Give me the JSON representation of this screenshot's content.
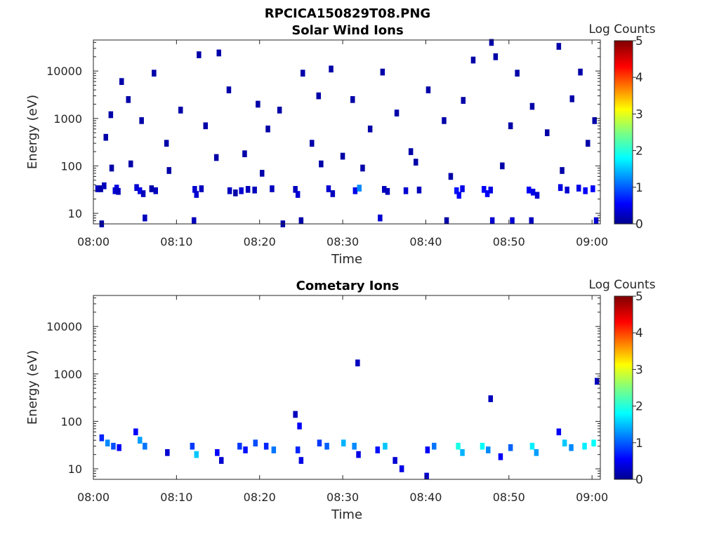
{
  "figure": {
    "title": "RPCICA150829T08.PNG"
  },
  "colorbar": {
    "label": "Log Counts",
    "range": [
      0,
      5
    ],
    "ticks": [
      "0",
      "1",
      "2",
      "3",
      "4",
      "5"
    ],
    "colormap": "jet"
  },
  "chart_data": [
    {
      "type": "heatmap",
      "title": "Solar Wind Ions",
      "xlabel": "Time",
      "ylabel": "Energy (eV)",
      "yscale": "log",
      "xlim": [
        "08:00",
        "09:01"
      ],
      "ylim": [
        6,
        45000
      ],
      "xticks": [
        "08:00",
        "08:10",
        "08:20",
        "08:30",
        "08:40",
        "08:50",
        "09:00"
      ],
      "yticks": [
        "10",
        "100",
        "1000",
        "10000"
      ],
      "xticks_min": [
        0,
        10,
        20,
        30,
        40,
        50,
        60
      ],
      "yticks_val": [
        10,
        100,
        1000,
        10000
      ],
      "cells": [
        [
          0.5,
          33,
          0.3
        ],
        [
          0.9,
          33,
          0.2
        ],
        [
          1.3,
          38,
          0.3
        ],
        [
          2.8,
          34,
          0.5
        ],
        [
          2.6,
          30,
          0.4
        ],
        [
          3.0,
          29,
          0.3
        ],
        [
          5.2,
          35,
          0.4
        ],
        [
          5.6,
          30,
          0.5
        ],
        [
          6.0,
          26,
          0.3
        ],
        [
          7.0,
          33,
          0.2
        ],
        [
          7.5,
          30,
          0.3
        ],
        [
          12.2,
          32,
          0.4
        ],
        [
          12.4,
          25,
          0.4
        ],
        [
          13.0,
          33,
          0.3
        ],
        [
          16.4,
          30,
          0.3
        ],
        [
          17.1,
          27,
          0.2
        ],
        [
          17.8,
          30,
          0.4
        ],
        [
          18.6,
          32,
          0.3
        ],
        [
          19.4,
          31,
          0.3
        ],
        [
          21.5,
          33,
          0.3
        ],
        [
          24.3,
          32,
          0.3
        ],
        [
          24.6,
          25,
          0.4
        ],
        [
          28.3,
          33,
          0.4
        ],
        [
          28.8,
          26,
          0.3
        ],
        [
          31.5,
          30,
          0.5
        ],
        [
          32.0,
          34,
          1.3
        ],
        [
          35.0,
          32,
          0.3
        ],
        [
          35.4,
          29,
          0.3
        ],
        [
          37.6,
          30,
          0.4
        ],
        [
          39.2,
          31,
          0.3
        ],
        [
          43.7,
          30,
          0.7
        ],
        [
          44.0,
          24,
          0.6
        ],
        [
          44.4,
          33,
          0.5
        ],
        [
          47.0,
          32,
          0.6
        ],
        [
          47.4,
          26,
          0.6
        ],
        [
          47.8,
          31,
          0.5
        ],
        [
          52.4,
          31,
          0.6
        ],
        [
          52.9,
          28,
          0.5
        ],
        [
          53.4,
          24,
          0.4
        ],
        [
          56.2,
          35,
          0.5
        ],
        [
          57.0,
          31,
          0.4
        ],
        [
          58.4,
          34,
          0.5
        ],
        [
          59.2,
          30,
          0.6
        ],
        [
          60.1,
          33,
          0.6
        ],
        [
          1.5,
          400,
          0.2
        ],
        [
          2.1,
          1200,
          0.2
        ],
        [
          3.4,
          6000,
          0.2
        ],
        [
          4.2,
          2500,
          0.2
        ],
        [
          5.8,
          900,
          0.2
        ],
        [
          7.3,
          9000,
          0.2
        ],
        [
          8.8,
          300,
          0.2
        ],
        [
          10.5,
          1500,
          0.2
        ],
        [
          12.7,
          22000,
          0.2
        ],
        [
          13.5,
          700,
          0.2
        ],
        [
          15.1,
          24000,
          0.2
        ],
        [
          16.3,
          4000,
          0.2
        ],
        [
          18.2,
          180,
          0.2
        ],
        [
          19.8,
          2000,
          0.2
        ],
        [
          21.0,
          600,
          0.2
        ],
        [
          22.4,
          1500,
          0.2
        ],
        [
          25.2,
          9000,
          0.2
        ],
        [
          26.3,
          300,
          0.2
        ],
        [
          27.1,
          3000,
          0.2
        ],
        [
          28.6,
          11000,
          0.2
        ],
        [
          30.0,
          160,
          0.2
        ],
        [
          31.2,
          2500,
          0.2
        ],
        [
          33.3,
          600,
          0.2
        ],
        [
          34.8,
          9500,
          0.2
        ],
        [
          36.5,
          1300,
          0.2
        ],
        [
          38.2,
          200,
          0.2
        ],
        [
          40.3,
          4000,
          0.2
        ],
        [
          42.2,
          900,
          0.2
        ],
        [
          44.5,
          2400,
          0.2
        ],
        [
          45.7,
          17000,
          0.2
        ],
        [
          47.9,
          40000,
          0.2
        ],
        [
          48.4,
          20000,
          0.2
        ],
        [
          50.2,
          700,
          0.2
        ],
        [
          51.0,
          9000,
          0.2
        ],
        [
          52.8,
          1800,
          0.2
        ],
        [
          54.6,
          500,
          0.2
        ],
        [
          56.0,
          33000,
          0.2
        ],
        [
          57.6,
          2600,
          0.2
        ],
        [
          58.6,
          9500,
          0.2
        ],
        [
          59.5,
          300,
          0.2
        ],
        [
          60.3,
          900,
          0.2
        ],
        [
          2.2,
          90,
          0.2
        ],
        [
          4.5,
          110,
          0.2
        ],
        [
          9.1,
          80,
          0.2
        ],
        [
          14.8,
          150,
          0.2
        ],
        [
          20.3,
          70,
          0.2
        ],
        [
          27.4,
          110,
          0.2
        ],
        [
          32.4,
          90,
          0.2
        ],
        [
          38.8,
          120,
          0.2
        ],
        [
          43.0,
          60,
          0.2
        ],
        [
          49.2,
          100,
          0.2
        ],
        [
          56.4,
          80,
          0.2
        ],
        [
          1.0,
          6,
          0.2
        ],
        [
          6.2,
          8,
          0.3
        ],
        [
          12.1,
          7,
          0.3
        ],
        [
          22.8,
          6,
          0.2
        ],
        [
          25.0,
          7,
          0.2
        ],
        [
          34.5,
          8,
          0.4
        ],
        [
          42.5,
          7,
          0.2
        ],
        [
          48.0,
          7,
          0.4
        ],
        [
          50.4,
          7,
          0.4
        ],
        [
          52.7,
          7,
          0.3
        ],
        [
          60.5,
          7,
          0.4
        ]
      ]
    },
    {
      "type": "heatmap",
      "title": "Cometary Ions",
      "xlabel": "Time",
      "ylabel": "Energy (eV)",
      "yscale": "log",
      "xlim": [
        "08:00",
        "09:01"
      ],
      "ylim": [
        6,
        45000
      ],
      "xticks": [
        "08:00",
        "08:10",
        "08:20",
        "08:30",
        "08:40",
        "08:50",
        "09:00"
      ],
      "yticks": [
        "10",
        "100",
        "1000",
        "10000"
      ],
      "xticks_min": [
        0,
        10,
        20,
        30,
        40,
        50,
        60
      ],
      "yticks_val": [
        10,
        100,
        1000,
        10000
      ],
      "cells": [
        [
          1.0,
          45,
          0.8
        ],
        [
          1.7,
          35,
          1.3
        ],
        [
          2.4,
          30,
          1.0
        ],
        [
          3.1,
          28,
          0.6
        ],
        [
          5.1,
          60,
          0.6
        ],
        [
          5.6,
          40,
          1.4
        ],
        [
          6.2,
          30,
          1.2
        ],
        [
          8.9,
          22,
          0.4
        ],
        [
          11.9,
          30,
          0.9
        ],
        [
          12.4,
          20,
          1.6
        ],
        [
          14.9,
          22,
          0.6
        ],
        [
          15.4,
          15,
          0.4
        ],
        [
          17.6,
          30,
          0.9
        ],
        [
          18.3,
          25,
          0.7
        ],
        [
          19.5,
          35,
          1.0
        ],
        [
          20.8,
          30,
          0.8
        ],
        [
          21.7,
          25,
          1.2
        ],
        [
          24.3,
          140,
          0.3
        ],
        [
          24.8,
          80,
          0.6
        ],
        [
          24.6,
          25,
          0.8
        ],
        [
          25.0,
          15,
          0.5
        ],
        [
          27.2,
          35,
          0.9
        ],
        [
          28.1,
          30,
          1.1
        ],
        [
          30.1,
          35,
          1.5
        ],
        [
          31.4,
          30,
          1.3
        ],
        [
          31.9,
          20,
          0.5
        ],
        [
          34.2,
          25,
          0.7
        ],
        [
          35.1,
          30,
          1.6
        ],
        [
          40.2,
          25,
          0.6
        ],
        [
          41.0,
          30,
          1.2
        ],
        [
          43.9,
          30,
          2.0
        ],
        [
          44.4,
          22,
          1.5
        ],
        [
          46.8,
          30,
          1.9
        ],
        [
          47.5,
          25,
          1.3
        ],
        [
          49.0,
          18,
          0.6
        ],
        [
          50.2,
          28,
          1.1
        ],
        [
          52.8,
          30,
          1.8
        ],
        [
          53.3,
          22,
          1.4
        ],
        [
          56.0,
          60,
          0.6
        ],
        [
          56.7,
          35,
          1.6
        ],
        [
          57.5,
          28,
          1.3
        ],
        [
          59.1,
          30,
          1.8
        ],
        [
          60.2,
          35,
          1.9
        ],
        [
          31.8,
          1700,
          0.3
        ],
        [
          47.8,
          300,
          0.3
        ],
        [
          60.6,
          700,
          0.3
        ],
        [
          37.1,
          10,
          0.5
        ],
        [
          36.3,
          15,
          0.4
        ],
        [
          40.1,
          7,
          0.4
        ]
      ]
    }
  ]
}
